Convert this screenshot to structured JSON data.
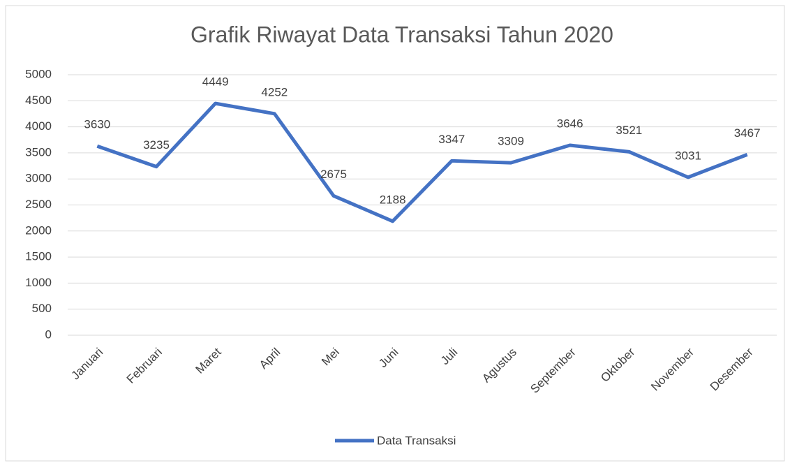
{
  "chart_data": {
    "type": "line",
    "title": "Grafik Riwayat Data Transaksi Tahun 2020",
    "categories": [
      "Januari",
      "Februari",
      "Maret",
      "April",
      "Mei",
      "Juni",
      "Juli",
      "Agustus",
      "September",
      "Oktober",
      "November",
      "Desember"
    ],
    "series": [
      {
        "name": "Data Transaksi",
        "color": "#4472c4",
        "values": [
          3630,
          3235,
          4449,
          4252,
          2675,
          2188,
          3347,
          3309,
          3646,
          3521,
          3031,
          3467
        ]
      }
    ],
    "ylim": [
      0,
      5000
    ],
    "yticks": [
      0,
      500,
      1000,
      1500,
      2000,
      2500,
      3000,
      3500,
      4000,
      4500,
      5000
    ],
    "grid": true,
    "data_labels": true,
    "legend": "bottom"
  }
}
